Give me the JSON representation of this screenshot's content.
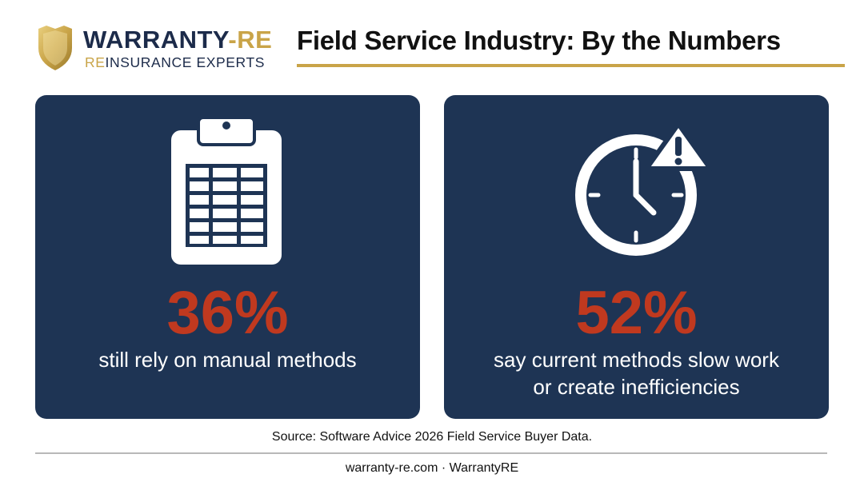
{
  "logo": {
    "brand_main": "WARRANTY",
    "brand_accent": "-RE",
    "tagline_accent": "RE",
    "tagline_main": "INSURANCE EXPERTS"
  },
  "title": "Field Service Industry: By the Numbers",
  "cards": [
    {
      "icon": "clipboard-table-icon",
      "stat": "36%",
      "caption": "still rely on manual methods"
    },
    {
      "icon": "clock-warning-icon",
      "stat": "52%",
      "caption_line1": "say current methods slow work",
      "caption_line2": "or create inefficiencies"
    }
  ],
  "source": "Source: Software Advice 2026 Field Service Buyer Data.",
  "footer": "warranty-re.com · WarrantyRE",
  "colors": {
    "navy": "#1e3454",
    "gold": "#c9a448",
    "stat_red": "#c0391f"
  }
}
